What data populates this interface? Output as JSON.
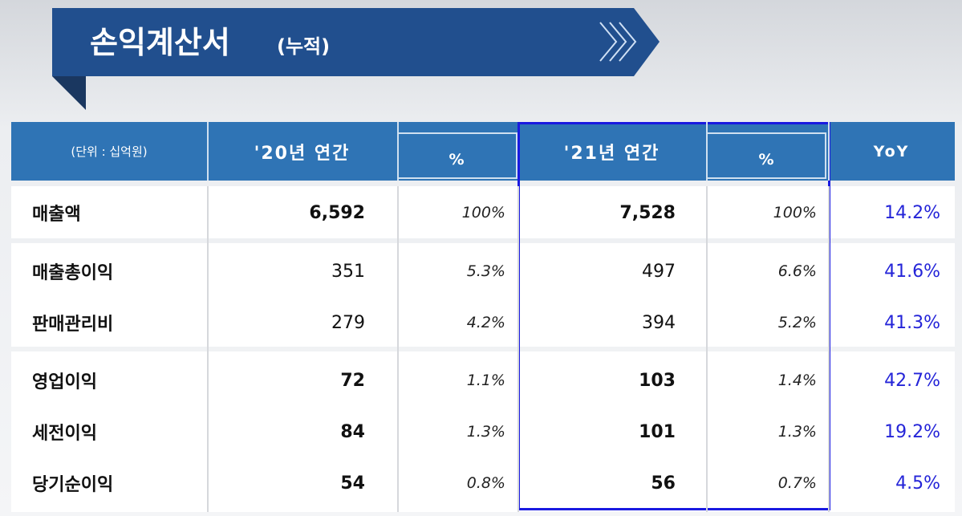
{
  "title": "손익계산서",
  "title_suffix": "(누적)",
  "header": {
    "unit": "(단위 : 십억원)",
    "columns": [
      "'20년 연간",
      "%",
      "'21년 연간",
      "%",
      "YoY"
    ]
  },
  "rows": [
    [
      "매출액",
      "6,592",
      "100%",
      "7,528",
      "100%",
      "14.2%"
    ],
    [
      "매출총이익",
      "351",
      "5.3%",
      "497",
      "6.6%",
      "41.6%"
    ],
    [
      "판매관리비",
      "279",
      "4.2%",
      "394",
      "5.2%",
      "41.3%"
    ],
    [
      "영업이익",
      "72",
      "1.1%",
      "103",
      "1.4%",
      "42.7%"
    ],
    [
      "세전이익",
      "84",
      "1.3%",
      "101",
      "1.3%",
      "19.2%"
    ],
    [
      "당기순이익",
      "54",
      "0.8%",
      "56",
      "0.7%",
      "4.5%"
    ]
  ]
}
